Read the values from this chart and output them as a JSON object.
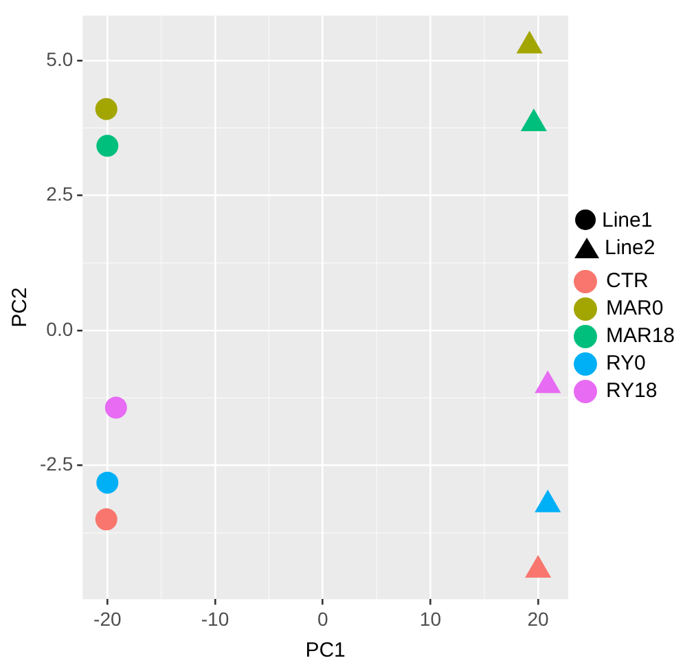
{
  "chart_data": {
    "type": "scatter",
    "xlabel": "PC1",
    "ylabel": "PC2",
    "series": [
      {
        "name": "CTR",
        "color": "#f8766d",
        "marker": "circle",
        "x": [
          -20.1
        ],
        "values": [
          -3.5
        ]
      },
      {
        "name": "MAR0",
        "color": "#a3a500",
        "marker": "circle",
        "x": [
          -20.1
        ],
        "values": [
          4.1
        ]
      },
      {
        "name": "MAR18",
        "color": "#00bf7d",
        "marker": "circle",
        "x": [
          -20.0
        ],
        "values": [
          3.42
        ]
      },
      {
        "name": "RY0",
        "color": "#00b0f6",
        "marker": "circle",
        "x": [
          -20.0
        ],
        "values": [
          -2.82
        ]
      },
      {
        "name": "RY18",
        "color": "#e76bf3",
        "marker": "circle",
        "x": [
          -19.2
        ],
        "values": [
          -1.43
        ]
      },
      {
        "color": "#f8766d",
        "marker": "triangle",
        "x": [
          20.0
        ],
        "values": [
          -4.44
        ]
      },
      {
        "color": "#a3a500",
        "marker": "triangle",
        "x": [
          19.2
        ],
        "values": [
          5.27
        ]
      },
      {
        "color": "#00bf7d",
        "marker": "triangle",
        "x": [
          19.6
        ],
        "values": [
          3.83
        ]
      },
      {
        "color": "#00b0f6",
        "marker": "triangle",
        "x": [
          20.9
        ],
        "values": [
          -3.23
        ]
      },
      {
        "color": "#e76bf3",
        "marker": "triangle",
        "x": [
          20.9
        ],
        "values": [
          -1.02
        ]
      }
    ],
    "annotations": [
      "Line1",
      "Line2"
    ],
    "xlim": [
      -22.3,
      22.8
    ],
    "xticks": [
      -20,
      -10,
      0,
      10,
      20
    ],
    "ylim": [
      -4.98,
      5.83
    ],
    "yticks": [
      {
        "value": -2.5,
        "label": "-2.5"
      },
      {
        "value": 0,
        "label": "0.0"
      },
      {
        "value": 2.5,
        "label": "2.5"
      },
      {
        "value": 5,
        "label": "5.0"
      }
    ],
    "grid": true,
    "legend": "right"
  }
}
